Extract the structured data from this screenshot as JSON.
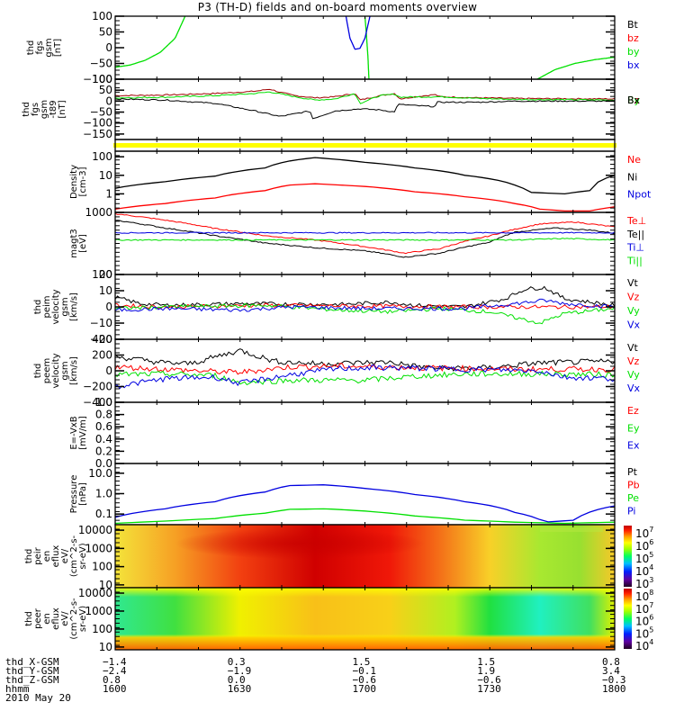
{
  "title": "P3 (TH-D) fields and on-board moments overview",
  "colors": {
    "black": "#000000",
    "red": "#ff0000",
    "darkred": "#a00000",
    "green": "#00e000",
    "blue": "#0000e0",
    "yellow": "#ffff00"
  },
  "chart_data": [
    {
      "id": "fgs",
      "type": "line",
      "ylabel": "thd\nfgs\ngsm\n[nT]",
      "ylim": [
        -100,
        100
      ],
      "yscale": "linear",
      "ticks": [
        "100",
        "50",
        "0",
        "-50",
        "-100"
      ],
      "tick_values": [
        100,
        50,
        0,
        -50,
        -100
      ],
      "legend": [
        {
          "label": "Bt",
          "color": "#000000"
        },
        {
          "label": "bz",
          "color": "#ff0000"
        },
        {
          "label": "by",
          "color": "#00e000"
        },
        {
          "label": "bx",
          "color": "#0000e0"
        }
      ],
      "series": [
        {
          "name": "by",
          "color": "#00e000",
          "x": [
            0,
            0.03,
            0.06,
            0.09,
            0.12,
            0.14
          ],
          "y": [
            -62,
            -55,
            -40,
            -15,
            30,
            100
          ]
        },
        {
          "name": "by-2",
          "color": "#00e000",
          "x": [
            0.5,
            0.503,
            0.506,
            0.508
          ],
          "y": [
            100,
            40,
            -30,
            -100
          ]
        },
        {
          "name": "bx",
          "color": "#0000e0",
          "x": [
            0.462,
            0.47,
            0.48,
            0.49,
            0.5,
            0.51
          ],
          "y": [
            100,
            30,
            -5,
            -2,
            30,
            100
          ]
        },
        {
          "name": "by-3",
          "color": "#00e000",
          "x": [
            0.845,
            0.88,
            0.92,
            0.96,
            1.0
          ],
          "y": [
            -100,
            -70,
            -50,
            -38,
            -30
          ]
        }
      ]
    },
    {
      "id": "fgs-t89",
      "type": "line",
      "ylabel": "thd\nfgs\ngsm\n-t89\n[nT]",
      "ylim": [
        -175,
        100
      ],
      "yscale": "linear",
      "ticks": [
        "100",
        "50",
        "0",
        "-50",
        "-100",
        "-150"
      ],
      "tick_values": [
        100,
        50,
        0,
        -50,
        -100,
        -150
      ],
      "legend": [
        {
          "label": "Bz",
          "color": "#a00000"
        },
        {
          "label": "By",
          "color": "#00e000"
        },
        {
          "label": "Bx",
          "color": "#000000"
        }
      ],
      "series": [
        {
          "name": "Bz",
          "color": "#a00000",
          "x": [
            0,
            0.1,
            0.2,
            0.28,
            0.31,
            0.33,
            0.36,
            0.4,
            0.44,
            0.48,
            0.49,
            0.53,
            0.56,
            0.57,
            0.6,
            0.64,
            0.65,
            0.73,
            0.8,
            1.0
          ],
          "y": [
            25,
            28,
            35,
            45,
            55,
            40,
            25,
            15,
            20,
            35,
            5,
            25,
            35,
            10,
            20,
            30,
            20,
            15,
            12,
            10
          ]
        },
        {
          "name": "By",
          "color": "#00e000",
          "x": [
            0,
            0.1,
            0.2,
            0.28,
            0.31,
            0.36,
            0.4,
            0.44,
            0.48,
            0.49,
            0.53,
            0.56,
            0.57,
            0.65,
            0.73,
            0.8,
            1.0
          ],
          "y": [
            15,
            18,
            25,
            35,
            42,
            20,
            5,
            10,
            35,
            -10,
            25,
            32,
            18,
            20,
            12,
            8,
            5
          ]
        },
        {
          "name": "Bx",
          "color": "#000000",
          "x": [
            0,
            0.1,
            0.2,
            0.28,
            0.33,
            0.39,
            0.395,
            0.44,
            0.49,
            0.53,
            0.56,
            0.565,
            0.6,
            0.64,
            0.645,
            0.73,
            0.8,
            1.0
          ],
          "y": [
            10,
            5,
            -10,
            -45,
            -70,
            -45,
            -80,
            -45,
            -35,
            -40,
            -50,
            -15,
            -20,
            -25,
            -5,
            -5,
            0,
            0
          ]
        }
      ]
    },
    {
      "id": "yellow-bar",
      "type": "bar",
      "ylabel": "",
      "note": "continuous yellow status bar across full interval",
      "color": "#ffff00"
    },
    {
      "id": "density",
      "type": "line",
      "ylabel": "Density\n[cm-3]",
      "ylim": [
        0.1,
        200
      ],
      "yscale": "log",
      "ticks": [
        "100",
        "10",
        "1"
      ],
      "tick_values": [
        100,
        10,
        1
      ],
      "legend": [
        {
          "label": "Ne",
          "color": "#ff0000"
        },
        {
          "label": "Ni",
          "color": "#000000"
        },
        {
          "label": "Npot",
          "color": "#0000e0"
        }
      ],
      "series": [
        {
          "name": "Ni",
          "color": "#000000",
          "x": [
            0,
            0.1,
            0.2,
            0.3,
            0.35,
            0.4,
            0.5,
            0.6,
            0.7,
            0.8,
            0.83,
            0.9,
            0.95,
            1.0
          ],
          "y": [
            2,
            4.5,
            9,
            25,
            60,
            90,
            50,
            25,
            10,
            3,
            1.2,
            1.0,
            1.5,
            10
          ]
        },
        {
          "name": "Ne",
          "color": "#ff0000",
          "x": [
            0,
            0.1,
            0.2,
            0.3,
            0.35,
            0.4,
            0.5,
            0.6,
            0.7,
            0.8,
            0.85,
            0.9,
            0.95,
            1.0
          ],
          "y": [
            0.15,
            0.3,
            0.6,
            1.5,
            3,
            3.5,
            2.5,
            1.3,
            0.7,
            0.3,
            0.15,
            0.12,
            0.12,
            0.2
          ]
        }
      ]
    },
    {
      "id": "magt3",
      "type": "line",
      "ylabel": "magt3\n[eV]",
      "ylim": [
        100,
        1000
      ],
      "yscale": "log",
      "ticks": [
        "1000",
        "100"
      ],
      "tick_values": [
        1000,
        100
      ],
      "legend": [
        {
          "label": "Te⊥",
          "color": "#ff0000"
        },
        {
          "label": "Te||",
          "color": "#000000"
        },
        {
          "label": "Ti⊥",
          "color": "#0000e0"
        },
        {
          "label": "Ti||",
          "color": "#00e000"
        }
      ],
      "series": [
        {
          "name": "Te_perp",
          "color": "#ff0000",
          "x": [
            0,
            0.1,
            0.2,
            0.3,
            0.4,
            0.5,
            0.58,
            0.65,
            0.75,
            0.85,
            0.92,
            1.0
          ],
          "y": [
            950,
            750,
            550,
            420,
            360,
            280,
            220,
            260,
            420,
            650,
            700,
            580
          ]
        },
        {
          "name": "Te_par",
          "color": "#000000",
          "x": [
            0,
            0.1,
            0.2,
            0.3,
            0.4,
            0.5,
            0.58,
            0.65,
            0.75,
            0.8,
            0.88,
            0.95,
            1.0
          ],
          "y": [
            750,
            560,
            420,
            320,
            270,
            240,
            190,
            220,
            330,
            480,
            560,
            520,
            460
          ]
        },
        {
          "name": "Ti_perp",
          "color": "#0000e0",
          "x": [
            0,
            0.5,
            0.8,
            0.9,
            1.0
          ],
          "y": [
            470,
            470,
            470,
            470,
            470
          ]
        },
        {
          "name": "Ti_par",
          "color": "#00e000",
          "x": [
            0,
            0.5,
            0.8,
            0.9,
            1.0
          ],
          "y": [
            360,
            360,
            360,
            380,
            360
          ]
        }
      ]
    },
    {
      "id": "peim-velocity",
      "type": "line",
      "ylabel": "thd\npeim\nvelocity\ngsm\n[km/s]",
      "ylim": [
        -20,
        20
      ],
      "yscale": "linear",
      "ticks": [
        "20",
        "10",
        "0",
        "-10",
        "-20"
      ],
      "tick_values": [
        20,
        10,
        0,
        -10,
        -20
      ],
      "legend": [
        {
          "label": "Vt",
          "color": "#000000"
        },
        {
          "label": "Vz",
          "color": "#ff0000"
        },
        {
          "label": "Vy",
          "color": "#00e000"
        },
        {
          "label": "Vx",
          "color": "#0000e0"
        }
      ],
      "series": [
        {
          "name": "Vt",
          "color": "#000000",
          "x": [
            0,
            0.05,
            0.1,
            0.25,
            0.45,
            0.55,
            0.6,
            0.7,
            0.78,
            0.82,
            0.86,
            0.9,
            1.0
          ],
          "y": [
            6,
            2,
            1,
            2,
            1.5,
            3,
            1,
            0,
            5,
            11,
            12,
            5,
            1
          ]
        },
        {
          "name": "Vz",
          "color": "#ff0000",
          "x": [
            0,
            0.1,
            0.3,
            0.5,
            0.7,
            0.85,
            1.0
          ],
          "y": [
            1,
            0,
            1,
            0.5,
            0,
            0,
            0
          ]
        },
        {
          "name": "Vy",
          "color": "#00e000",
          "x": [
            0,
            0.1,
            0.3,
            0.45,
            0.55,
            0.65,
            0.75,
            0.85,
            0.9,
            1.0
          ],
          "y": [
            -1,
            0,
            1,
            -2,
            -3,
            -1,
            -3,
            -10,
            -4,
            -1
          ]
        },
        {
          "name": "Vx",
          "color": "#0000e0",
          "x": [
            0,
            0.1,
            0.25,
            0.35,
            0.5,
            0.7,
            0.8,
            0.86,
            0.9,
            1.0
          ],
          "y": [
            -2,
            -1,
            -2,
            0,
            -1,
            -1,
            2,
            4,
            2,
            0
          ]
        }
      ]
    },
    {
      "id": "peem-velocity",
      "type": "line",
      "ylabel": "thd\npeem\nvelocity\ngsm\n[km/s]",
      "ylim": [
        -400,
        400
      ],
      "yscale": "linear",
      "ticks": [
        "400",
        "200",
        "0",
        "-200",
        "-400"
      ],
      "tick_values": [
        400,
        200,
        0,
        -200,
        -400
      ],
      "legend": [
        {
          "label": "Vt",
          "color": "#000000"
        },
        {
          "label": "Vz",
          "color": "#ff0000"
        },
        {
          "label": "Vy",
          "color": "#00e000"
        },
        {
          "label": "Vx",
          "color": "#0000e0"
        }
      ],
      "series": [
        {
          "name": "Vt",
          "color": "#000000",
          "x": [
            0,
            0.1,
            0.15,
            0.25,
            0.32,
            0.4,
            0.55,
            0.6,
            0.65,
            0.75,
            0.85,
            1.0
          ],
          "y": [
            180,
            100,
            90,
            260,
            120,
            90,
            110,
            60,
            30,
            40,
            100,
            120
          ]
        },
        {
          "name": "Vz",
          "color": "#ff0000",
          "x": [
            0,
            0.1,
            0.2,
            0.25,
            0.35,
            0.45,
            0.6,
            0.8,
            1.0
          ],
          "y": [
            50,
            20,
            -10,
            -20,
            50,
            60,
            40,
            20,
            20
          ]
        },
        {
          "name": "Vy",
          "color": "#00e000",
          "x": [
            0,
            0.1,
            0.2,
            0.25,
            0.35,
            0.5,
            0.6,
            0.7,
            0.85,
            1.0
          ],
          "y": [
            -50,
            -40,
            -60,
            -150,
            -120,
            -120,
            -70,
            -40,
            -40,
            -50
          ]
        },
        {
          "name": "Vx",
          "color": "#0000e0",
          "x": [
            0,
            0.1,
            0.2,
            0.25,
            0.35,
            0.45,
            0.55,
            0.7,
            0.85,
            0.9,
            1.0
          ],
          "y": [
            -200,
            -100,
            -80,
            -160,
            -50,
            30,
            40,
            20,
            0,
            -80,
            -100
          ]
        }
      ]
    },
    {
      "id": "e-vxb",
      "type": "line",
      "ylabel": "E=-VxB\n[mV/m]",
      "ylim": [
        0.0,
        1.0
      ],
      "yscale": "linear",
      "ticks": [
        "1.0",
        "0.8",
        "0.6",
        "0.4",
        "0.2",
        "0.0"
      ],
      "tick_values": [
        1.0,
        0.8,
        0.6,
        0.4,
        0.2,
        0.0
      ],
      "legend": [
        {
          "label": "Ez",
          "color": "#ff0000"
        },
        {
          "label": "Ey",
          "color": "#00e000"
        },
        {
          "label": "Ex",
          "color": "#0000e0"
        }
      ],
      "series": []
    },
    {
      "id": "pressure",
      "type": "line",
      "ylabel": "Pressure\n[nPa]",
      "ylim": [
        0.03,
        30
      ],
      "yscale": "log",
      "ticks": [
        "10.0",
        "1.0",
        "0.1"
      ],
      "tick_values": [
        10,
        1,
        0.1
      ],
      "legend": [
        {
          "label": "Pt",
          "color": "#000000"
        },
        {
          "label": "Pb",
          "color": "#ff0000"
        },
        {
          "label": "Pe",
          "color": "#00e000"
        },
        {
          "label": "Pi",
          "color": "#0000e0"
        }
      ],
      "series": [
        {
          "name": "Pi",
          "color": "#0000e0",
          "x": [
            0,
            0.1,
            0.2,
            0.3,
            0.35,
            0.42,
            0.5,
            0.6,
            0.7,
            0.8,
            0.86,
            0.92,
            1.0
          ],
          "y": [
            0.07,
            0.18,
            0.4,
            1.2,
            2.5,
            2.7,
            1.8,
            0.9,
            0.4,
            0.12,
            0.04,
            0.05,
            0.25
          ]
        },
        {
          "name": "Pe",
          "color": "#00e000",
          "x": [
            0,
            0.1,
            0.2,
            0.3,
            0.35,
            0.42,
            0.5,
            0.6,
            0.7,
            0.8,
            0.9,
            1.0
          ],
          "y": [
            0.035,
            0.045,
            0.06,
            0.11,
            0.17,
            0.18,
            0.14,
            0.08,
            0.05,
            0.04,
            0.035,
            0.04
          ]
        }
      ]
    },
    {
      "id": "peir-eflux",
      "type": "heatmap",
      "ylabel": "thd\npeir\nen\neflux\neV/\n(cm^2-s-\nsr-eV)",
      "ylim": [
        7,
        20000
      ],
      "yscale": "log",
      "ticks": [
        "10000",
        "1000",
        "100",
        "10"
      ],
      "tick_values": [
        10000,
        1000,
        100,
        10
      ],
      "colorbar": {
        "scale": "log",
        "ticks": [
          "10^7",
          "10^6",
          "10^5",
          "10^4",
          "10^3"
        ]
      },
      "description": "ion energy flux: peak (~10^7) near 1630-1700 at all energies, green (~10^5) near 1745-1800"
    },
    {
      "id": "peer-eflux",
      "type": "heatmap",
      "ylabel": "thd\npeer\nen\neflux\neV/\n(cm^2-s-\nsr-eV)",
      "ylim": [
        7,
        20000
      ],
      "yscale": "log",
      "ticks": [
        "10000",
        "1000",
        "100",
        "10"
      ],
      "tick_values": [
        10000,
        1000,
        100,
        10
      ],
      "colorbar": {
        "scale": "log",
        "ticks": [
          "10^8",
          "10^7",
          "10^6",
          "10^5",
          "10^4"
        ]
      },
      "description": "electron energy flux: green/cyan (~10^5-10^6) at 100-3000 eV near 1600-1615 and 1740-1800; yellow/orange elsewhere; orange band below 50 eV"
    }
  ],
  "x_axis": {
    "rows": [
      {
        "label": "thd_X-GSM",
        "values": [
          "-1.4",
          "0.3",
          "1.5",
          "1.5",
          "0.8"
        ]
      },
      {
        "label": "thd_Y-GSM",
        "values": [
          "-2.4",
          "-1.9",
          "-0.1",
          "1.9",
          "3.4"
        ]
      },
      {
        "label": "thd_Z-GSM",
        "values": [
          "0.8",
          "0.0",
          "-0.6",
          "-0.6",
          "-0.3"
        ]
      },
      {
        "label": "hhmm",
        "values": [
          "1600",
          "1630",
          "1700",
          "1730",
          "1800"
        ]
      }
    ],
    "date": "2010 May 20"
  }
}
